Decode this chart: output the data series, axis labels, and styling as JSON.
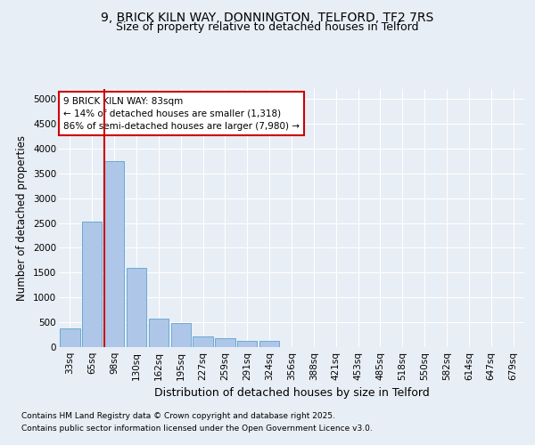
{
  "title_line1": "9, BRICK KILN WAY, DONNINGTON, TELFORD, TF2 7RS",
  "title_line2": "Size of property relative to detached houses in Telford",
  "xlabel": "Distribution of detached houses by size in Telford",
  "ylabel": "Number of detached properties",
  "categories": [
    "33sq",
    "65sq",
    "98sq",
    "130sq",
    "162sq",
    "195sq",
    "227sq",
    "259sq",
    "291sq",
    "324sq",
    "356sq",
    "388sq",
    "421sq",
    "453sq",
    "485sq",
    "518sq",
    "550sq",
    "582sq",
    "614sq",
    "647sq",
    "679sq"
  ],
  "bar_heights": [
    380,
    2520,
    3750,
    1600,
    570,
    480,
    210,
    180,
    130,
    120,
    0,
    0,
    0,
    0,
    0,
    0,
    0,
    0,
    0,
    0,
    0
  ],
  "bar_color": "#aec6e8",
  "bar_edge_color": "#6aaad4",
  "annotation_text": "9 BRICK KILN WAY: 83sqm\n← 14% of detached houses are smaller (1,318)\n86% of semi-detached houses are larger (7,980) →",
  "annotation_box_color": "#ffffff",
  "annotation_box_edge": "#cc0000",
  "vline_color": "#cc0000",
  "vline_x": 1.545,
  "ylim": [
    0,
    5200
  ],
  "yticks": [
    0,
    500,
    1000,
    1500,
    2000,
    2500,
    3000,
    3500,
    4000,
    4500,
    5000
  ],
  "background_color": "#e8eef5",
  "footer_line1": "Contains HM Land Registry data © Crown copyright and database right 2025.",
  "footer_line2": "Contains public sector information licensed under the Open Government Licence v3.0.",
  "title_fontsize": 10,
  "subtitle_fontsize": 9,
  "axis_label_fontsize": 8.5,
  "tick_fontsize": 7.5,
  "annotation_fontsize": 7.5,
  "footer_fontsize": 6.5
}
